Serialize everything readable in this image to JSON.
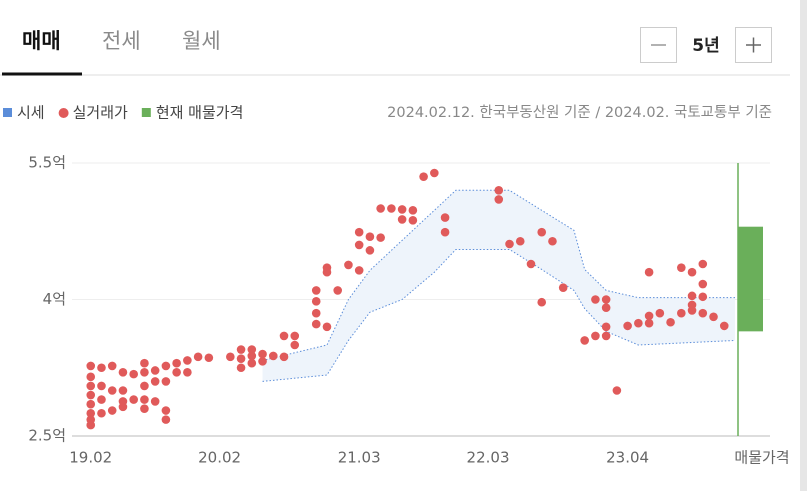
{
  "tabs": [
    "매매",
    "전세",
    "월세"
  ],
  "period": "5년",
  "note": "2024.02.12. 한국부동산원 기준 / 2024.02. 국토교통부 기준",
  "chart_data": {
    "type": "scatter",
    "xlim": [
      "19.01",
      "24.02"
    ],
    "xticks": [
      "19.02",
      "20.02",
      "21.03",
      "22.03",
      "23.04"
    ],
    "ylim": [
      2.5,
      5.5
    ],
    "yticks": [
      {
        "value": 2.5,
        "label": "2.5억"
      },
      {
        "value": 4,
        "label": "4억"
      },
      {
        "value": 5.5,
        "label": "5.5억"
      }
    ],
    "grid": true,
    "series": [
      {
        "name": "시세",
        "type": "area",
        "color": "#5b8dd9",
        "x": [
          "20.06",
          "20.12",
          "21.02",
          "21.04",
          "21.07",
          "21.10",
          "21.12",
          "22.05",
          "22.08",
          "22.11",
          "22.12",
          "23.02",
          "23.05",
          "24.02"
        ],
        "low": [
          3.1,
          3.17,
          3.55,
          3.86,
          4.0,
          4.3,
          4.55,
          4.55,
          4.33,
          4.1,
          3.9,
          3.65,
          3.5,
          3.55
        ],
        "high": [
          3.33,
          3.5,
          4.0,
          4.32,
          4.65,
          4.98,
          5.2,
          5.2,
          4.98,
          4.76,
          4.33,
          4.1,
          4.02,
          4.02
        ]
      },
      {
        "name": "실거래가",
        "type": "scatter",
        "color": "#e05a5a",
        "x": [
          "19.02",
          "19.02",
          "19.02",
          "19.02",
          "19.02",
          "19.02",
          "19.02",
          "19.02",
          "19.03",
          "19.03",
          "19.03",
          "19.03",
          "19.04",
          "19.04",
          "19.04",
          "19.05",
          "19.05",
          "19.05",
          "19.05",
          "19.06",
          "19.06",
          "19.07",
          "19.07",
          "19.07",
          "19.07",
          "19.07",
          "19.08",
          "19.08",
          "19.08",
          "19.09",
          "19.09",
          "19.09",
          "19.09",
          "19.10",
          "19.10",
          "19.11",
          "19.11",
          "19.12",
          "20.01",
          "20.03",
          "20.04",
          "20.04",
          "20.04",
          "20.05",
          "20.05",
          "20.05",
          "20.06",
          "20.06",
          "20.07",
          "20.08",
          "20.08",
          "20.09",
          "20.09",
          "20.11",
          "20.11",
          "20.11",
          "20.11",
          "20.12",
          "20.12",
          "20.12",
          "21.01",
          "21.02",
          "21.03",
          "21.03",
          "21.03",
          "21.04",
          "21.04",
          "21.05",
          "21.05",
          "21.06",
          "21.07",
          "21.07",
          "21.08",
          "21.08",
          "21.09",
          "21.10",
          "21.11",
          "21.11",
          "22.04",
          "22.04",
          "22.05",
          "22.06",
          "22.07",
          "22.08",
          "22.08",
          "22.09",
          "22.10",
          "22.12",
          "23.01",
          "23.01",
          "23.02",
          "23.02",
          "23.02",
          "23.02",
          "23.03",
          "23.04",
          "23.05",
          "23.06",
          "23.06",
          "23.06",
          "23.07",
          "23.08",
          "23.09",
          "23.09",
          "23.10",
          "23.10",
          "23.10",
          "23.10",
          "23.11",
          "23.11",
          "23.11",
          "23.11",
          "23.12",
          "24.01"
        ],
        "values": [
          3.27,
          3.15,
          3.05,
          2.95,
          2.85,
          2.75,
          2.68,
          2.62,
          3.25,
          3.05,
          2.9,
          2.75,
          3.27,
          3.0,
          2.78,
          3.2,
          3.0,
          2.88,
          2.82,
          3.18,
          2.9,
          3.3,
          3.2,
          3.05,
          2.9,
          2.8,
          3.22,
          3.1,
          2.88,
          3.27,
          3.1,
          2.78,
          2.68,
          3.3,
          3.2,
          3.33,
          3.2,
          3.37,
          3.36,
          3.37,
          3.45,
          3.35,
          3.25,
          3.45,
          3.38,
          3.3,
          3.4,
          3.32,
          3.38,
          3.6,
          3.37,
          3.6,
          3.5,
          4.1,
          3.98,
          3.85,
          3.73,
          4.35,
          4.3,
          3.7,
          4.1,
          4.38,
          4.74,
          4.6,
          4.32,
          4.69,
          4.54,
          5.0,
          4.68,
          5.0,
          4.99,
          4.88,
          4.98,
          4.87,
          5.35,
          5.39,
          4.9,
          4.74,
          5.2,
          5.1,
          4.61,
          4.64,
          4.39,
          4.74,
          3.97,
          4.64,
          4.13,
          3.55,
          4.0,
          3.6,
          4.0,
          3.91,
          3.7,
          3.6,
          3.0,
          3.71,
          3.74,
          4.3,
          3.82,
          3.74,
          3.85,
          3.75,
          4.35,
          3.85,
          4.3,
          4.04,
          3.94,
          3.88,
          4.39,
          4.17,
          4.03,
          3.85,
          3.81,
          3.71
        ]
      },
      {
        "name": "현재 매물가격",
        "type": "range_bar",
        "color": "#6aaf5a",
        "label": "매물가격",
        "low": 3.65,
        "high": 4.8
      }
    ]
  }
}
